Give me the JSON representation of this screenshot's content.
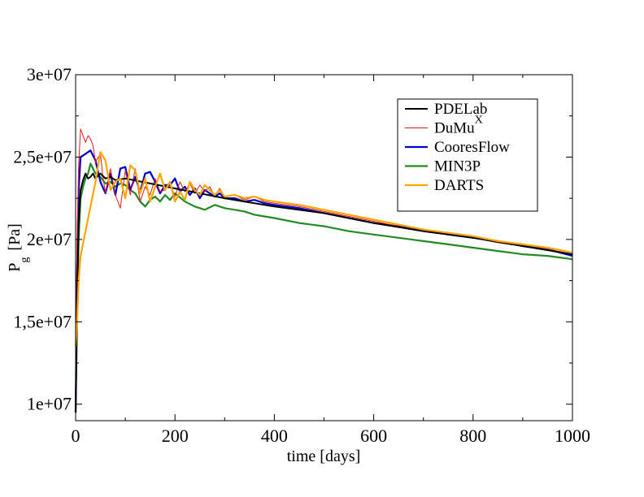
{
  "chart_data": {
    "type": "line",
    "title": "",
    "xlabel": "time [days]",
    "ylabel_main": "P",
    "ylabel_sub": "g",
    "ylabel_unit": "[Pa]",
    "xlim": [
      0,
      1000
    ],
    "ylim": [
      9000000,
      30000000
    ],
    "x_ticks": [
      0,
      200,
      400,
      600,
      800,
      1000
    ],
    "x_tick_labels": [
      "0",
      "200",
      "400",
      "600",
      "800",
      "1000"
    ],
    "y_ticks": [
      10000000,
      15000000,
      20000000,
      25000000,
      30000000
    ],
    "y_tick_labels": [
      "1e+07",
      "1,5e+07",
      "2e+07",
      "2,5e+07",
      "3e+07"
    ],
    "grid": false,
    "legend_position": "top-right",
    "series": [
      {
        "name": "PDELab",
        "color": "#000000",
        "stroke_width": 2,
        "x": [
          0,
          3,
          6,
          10,
          15,
          20,
          25,
          30,
          35,
          40,
          50,
          60,
          70,
          80,
          100,
          150,
          200,
          300,
          400,
          500,
          600,
          700,
          800,
          900,
          1000
        ],
        "y": [
          9500000,
          16000000,
          21000000,
          23000000,
          23600000,
          24000000,
          23700000,
          23800000,
          24000000,
          23700000,
          24000000,
          23700000,
          23800000,
          23600000,
          23700000,
          23400000,
          23100000,
          22500000,
          22000000,
          21600000,
          21000000,
          20500000,
          20100000,
          19600000,
          19100000
        ]
      },
      {
        "name": "DuMu",
        "name_superscript": "X",
        "color": "#e41a1c",
        "stroke_width": 1,
        "x": [
          0,
          3,
          6,
          10,
          20,
          25,
          30,
          35,
          40,
          50,
          55,
          60,
          70,
          80,
          90,
          100,
          110,
          120,
          130,
          140,
          150,
          160,
          170,
          180,
          190,
          200,
          210,
          220,
          230,
          240,
          250,
          260,
          270,
          280,
          290,
          300,
          320,
          340,
          360,
          380,
          400,
          450,
          500,
          550,
          600,
          650,
          700,
          750,
          800,
          850,
          900,
          950,
          1000
        ],
        "y": [
          10000000,
          20000000,
          24500000,
          26700000,
          25900000,
          26300000,
          26100000,
          25700000,
          24700000,
          25200000,
          23800000,
          22800000,
          24300000,
          22700000,
          21900000,
          24200000,
          22700000,
          24300000,
          22300000,
          23200000,
          22700000,
          23700000,
          22900000,
          23000000,
          23400000,
          22600000,
          23500000,
          22900000,
          23400000,
          22800000,
          23300000,
          22900000,
          23200000,
          22600000,
          23100000,
          22600000,
          22700000,
          22400000,
          22600000,
          22300000,
          22200000,
          22000000,
          21700000,
          21400000,
          21100000,
          20800000,
          20500000,
          20300000,
          20100000,
          19800000,
          19600000,
          19400000,
          19100000
        ]
      },
      {
        "name": "CooresFlow",
        "color": "#0000cc",
        "stroke_width": 2.2,
        "x": [
          0,
          3,
          6,
          10,
          20,
          30,
          40,
          50,
          60,
          70,
          80,
          90,
          100,
          110,
          120,
          130,
          140,
          150,
          160,
          170,
          180,
          190,
          200,
          210,
          220,
          230,
          240,
          250,
          260,
          270,
          280,
          290,
          300,
          320,
          340,
          360,
          380,
          400,
          450,
          500,
          550,
          600,
          650,
          700,
          750,
          800,
          850,
          900,
          950,
          1000
        ],
        "y": [
          9500000,
          18000000,
          23000000,
          25000000,
          25200000,
          25400000,
          24800000,
          23500000,
          22800000,
          24000000,
          22700000,
          24300000,
          24400000,
          23000000,
          23800000,
          22900000,
          24000000,
          24100000,
          23500000,
          22800000,
          23300000,
          23300000,
          23700000,
          22900000,
          23200000,
          22700000,
          23100000,
          22500000,
          23000000,
          22800000,
          22600000,
          22800000,
          22500000,
          22500000,
          22300000,
          22400000,
          22200000,
          22100000,
          21900000,
          21600000,
          21300000,
          21000000,
          20800000,
          20600000,
          20300000,
          20100000,
          19900000,
          19600000,
          19400000,
          19000000
        ]
      },
      {
        "name": "MIN3P",
        "color": "#228b22",
        "stroke_width": 2.2,
        "x": [
          0,
          3,
          6,
          10,
          15,
          20,
          25,
          30,
          35,
          40,
          50,
          60,
          70,
          80,
          90,
          100,
          110,
          120,
          130,
          140,
          150,
          160,
          170,
          180,
          190,
          200,
          220,
          240,
          260,
          280,
          300,
          320,
          340,
          360,
          380,
          400,
          450,
          500,
          550,
          600,
          650,
          700,
          750,
          800,
          850,
          900,
          950,
          1000
        ],
        "y": [
          9500000,
          15000000,
          20000000,
          22500000,
          23200000,
          23700000,
          24000000,
          24600000,
          24300000,
          24000000,
          23800000,
          23400000,
          23500000,
          23200000,
          23400000,
          23300000,
          23000000,
          22800000,
          22300000,
          22000000,
          22400000,
          22600000,
          22300000,
          22700000,
          22400000,
          22800000,
          22300000,
          22000000,
          21800000,
          22100000,
          21900000,
          21800000,
          21700000,
          21500000,
          21400000,
          21300000,
          21000000,
          20800000,
          20500000,
          20300000,
          20100000,
          19900000,
          19700000,
          19500000,
          19300000,
          19100000,
          19000000,
          18800000
        ]
      },
      {
        "name": "DARTS",
        "color": "#ffa500",
        "stroke_width": 2.2,
        "x": [
          0,
          3,
          6,
          10,
          20,
          30,
          40,
          50,
          60,
          70,
          80,
          90,
          100,
          110,
          120,
          130,
          140,
          150,
          160,
          170,
          180,
          190,
          200,
          210,
          220,
          230,
          240,
          250,
          260,
          270,
          280,
          290,
          300,
          320,
          340,
          360,
          380,
          400,
          450,
          500,
          550,
          600,
          650,
          700,
          750,
          800,
          850,
          900,
          950,
          1000
        ],
        "y": [
          13500000,
          15000000,
          17500000,
          19000000,
          20500000,
          22000000,
          23500000,
          25300000,
          24800000,
          23000000,
          23500000,
          23700000,
          22500000,
          24500000,
          24200000,
          22800000,
          23700000,
          22300000,
          23200000,
          24000000,
          23000000,
          23500000,
          22300000,
          22900000,
          22400000,
          23500000,
          23000000,
          22700000,
          23300000,
          23000000,
          22700000,
          23000000,
          22600000,
          22700000,
          22500000,
          22600000,
          22400000,
          22300000,
          22100000,
          21800000,
          21500000,
          21200000,
          20900000,
          20600000,
          20400000,
          20200000,
          19900000,
          19700000,
          19500000,
          19200000
        ]
      }
    ]
  }
}
